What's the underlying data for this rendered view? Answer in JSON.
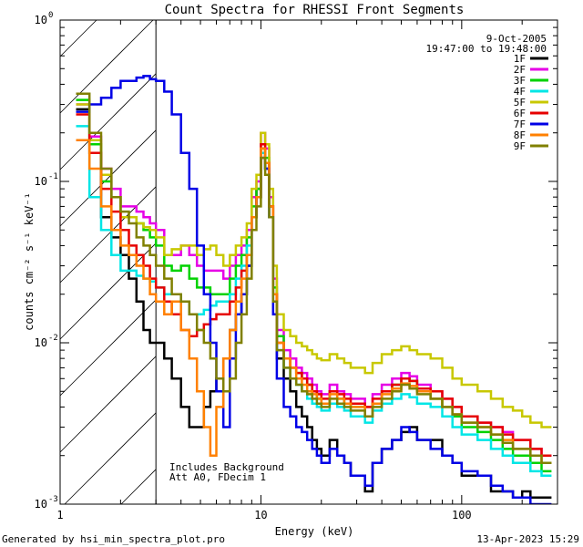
{
  "footer": {
    "generated_by": "Generated by hsi_min_spectra_plot.pro",
    "timestamp": "13-Apr-2023 15:29"
  },
  "chart_data": {
    "type": "line",
    "title": "Count Spectra for RHESSI Front Segments",
    "xlabel": "Energy (keV)",
    "ylabel": "counts cm⁻² s⁻¹ keV⁻¹",
    "x_scale": "log",
    "y_scale": "log",
    "xlim": [
      1,
      300
    ],
    "ylim": [
      0.001,
      1
    ],
    "x_ticks": [
      {
        "value": 1,
        "label": "1"
      },
      {
        "value": 10,
        "label": "10"
      },
      {
        "value": 100,
        "label": "100"
      }
    ],
    "y_ticks": [
      {
        "value": 1,
        "label": "10",
        "exp": "0"
      },
      {
        "value": 0.1,
        "label": "10",
        "exp": "-1"
      },
      {
        "value": 0.01,
        "label": "10",
        "exp": "-2"
      },
      {
        "value": 0.001,
        "label": "10",
        "exp": "-3"
      }
    ],
    "date": "9-Oct-2005",
    "time_range": "19:47:00 to 19:48:00",
    "annotations": [
      "Includes Background",
      "Att A0, FDecim 1"
    ],
    "hatched_region_max_energy": 3,
    "edges": [
      1.2,
      1.4,
      1.6,
      1.8,
      2.0,
      2.2,
      2.4,
      2.6,
      2.8,
      3.0,
      3.3,
      3.6,
      4.0,
      4.4,
      4.8,
      5.2,
      5.6,
      6.0,
      6.5,
      7.0,
      7.5,
      8.0,
      8.5,
      9.0,
      9.5,
      10.0,
      10.5,
      11.0,
      11.5,
      12.0,
      13.0,
      14.0,
      15.0,
      16.0,
      17.0,
      18.0,
      19.0,
      20.0,
      22.0,
      24.0,
      26.0,
      28.0,
      30.0,
      33.0,
      36.0,
      40.0,
      45.0,
      50.0,
      55.0,
      60.0,
      70.0,
      80.0,
      90.0,
      100.0,
      120.0,
      140.0,
      160.0,
      180.0,
      200.0,
      220.0,
      250.0,
      280.0
    ],
    "series": [
      {
        "name": "1F",
        "color": "#000000",
        "values": [
          0.28,
          0.15,
          0.06,
          0.045,
          0.035,
          0.025,
          0.018,
          0.012,
          0.01,
          0.01,
          0.008,
          0.006,
          0.004,
          0.003,
          0.003,
          0.004,
          0.005,
          0.006,
          0.008,
          0.012,
          0.015,
          0.02,
          0.03,
          0.06,
          0.09,
          0.15,
          0.12,
          0.07,
          0.02,
          0.008,
          0.006,
          0.005,
          0.004,
          0.0035,
          0.003,
          0.0025,
          0.0022,
          0.002,
          0.0025,
          0.002,
          0.0018,
          0.0015,
          0.0015,
          0.0012,
          0.0018,
          0.0022,
          0.0025,
          0.0028,
          0.003,
          0.0025,
          0.0025,
          0.002,
          0.0018,
          0.0015,
          0.0015,
          0.0012,
          0.0012,
          0.0011,
          0.0012,
          0.0011,
          0.0011
        ]
      },
      {
        "name": "2F",
        "color": "#e600e6",
        "values": [
          0.3,
          0.19,
          0.12,
          0.09,
          0.07,
          0.07,
          0.065,
          0.06,
          0.055,
          0.05,
          0.035,
          0.035,
          0.04,
          0.035,
          0.03,
          0.028,
          0.028,
          0.028,
          0.025,
          0.03,
          0.035,
          0.04,
          0.05,
          0.08,
          0.1,
          0.2,
          0.16,
          0.08,
          0.025,
          0.012,
          0.009,
          0.008,
          0.007,
          0.0065,
          0.006,
          0.0055,
          0.005,
          0.0048,
          0.0055,
          0.005,
          0.0048,
          0.0045,
          0.0045,
          0.004,
          0.0048,
          0.0055,
          0.006,
          0.0065,
          0.0062,
          0.0055,
          0.005,
          0.0045,
          0.004,
          0.0035,
          0.0032,
          0.003,
          0.0028,
          0.0025,
          0.0025,
          0.0022,
          0.002
        ]
      },
      {
        "name": "3F",
        "color": "#00d200",
        "values": [
          0.32,
          0.17,
          0.1,
          0.08,
          0.06,
          0.06,
          0.055,
          0.05,
          0.045,
          0.04,
          0.03,
          0.028,
          0.03,
          0.025,
          0.022,
          0.022,
          0.02,
          0.02,
          0.02,
          0.025,
          0.03,
          0.035,
          0.045,
          0.07,
          0.09,
          0.16,
          0.14,
          0.07,
          0.022,
          0.011,
          0.008,
          0.007,
          0.0065,
          0.006,
          0.0055,
          0.005,
          0.0045,
          0.0042,
          0.005,
          0.0045,
          0.0042,
          0.004,
          0.004,
          0.0035,
          0.0042,
          0.005,
          0.0055,
          0.006,
          0.0058,
          0.005,
          0.0045,
          0.004,
          0.0035,
          0.003,
          0.0028,
          0.0025,
          0.0022,
          0.002,
          0.002,
          0.0018,
          0.0016
        ]
      },
      {
        "name": "4F",
        "color": "#00e6e6",
        "values": [
          0.22,
          0.08,
          0.05,
          0.035,
          0.028,
          0.028,
          0.026,
          0.025,
          0.024,
          0.022,
          0.02,
          0.02,
          0.018,
          0.015,
          0.015,
          0.016,
          0.017,
          0.018,
          0.018,
          0.02,
          0.025,
          0.03,
          0.04,
          0.06,
          0.08,
          0.15,
          0.12,
          0.06,
          0.018,
          0.009,
          0.007,
          0.006,
          0.0055,
          0.005,
          0.0045,
          0.0042,
          0.004,
          0.0038,
          0.0042,
          0.004,
          0.0038,
          0.0035,
          0.0035,
          0.0032,
          0.0038,
          0.0042,
          0.0045,
          0.0048,
          0.0046,
          0.0042,
          0.004,
          0.0035,
          0.003,
          0.0027,
          0.0025,
          0.0022,
          0.002,
          0.0018,
          0.0018,
          0.0016,
          0.0015
        ]
      },
      {
        "name": "5F",
        "color": "#c8c800",
        "values": [
          0.3,
          0.18,
          0.11,
          0.08,
          0.06,
          0.06,
          0.055,
          0.052,
          0.05,
          0.045,
          0.035,
          0.038,
          0.04,
          0.04,
          0.035,
          0.038,
          0.04,
          0.035,
          0.03,
          0.035,
          0.04,
          0.045,
          0.055,
          0.09,
          0.11,
          0.2,
          0.17,
          0.09,
          0.03,
          0.015,
          0.012,
          0.011,
          0.01,
          0.0095,
          0.009,
          0.0085,
          0.008,
          0.0078,
          0.0085,
          0.008,
          0.0075,
          0.007,
          0.007,
          0.0065,
          0.0075,
          0.0085,
          0.009,
          0.0095,
          0.009,
          0.0085,
          0.008,
          0.007,
          0.006,
          0.0055,
          0.005,
          0.0045,
          0.004,
          0.0038,
          0.0035,
          0.0032,
          0.003
        ]
      },
      {
        "name": "6F",
        "color": "#e60000",
        "values": [
          0.26,
          0.15,
          0.09,
          0.065,
          0.05,
          0.04,
          0.035,
          0.03,
          0.025,
          0.022,
          0.018,
          0.015,
          0.012,
          0.011,
          0.012,
          0.013,
          0.014,
          0.015,
          0.015,
          0.018,
          0.022,
          0.028,
          0.035,
          0.06,
          0.08,
          0.17,
          0.13,
          0.07,
          0.02,
          0.01,
          0.008,
          0.007,
          0.0065,
          0.006,
          0.0055,
          0.005,
          0.0048,
          0.0045,
          0.005,
          0.0048,
          0.0045,
          0.0042,
          0.0042,
          0.004,
          0.0045,
          0.005,
          0.0055,
          0.006,
          0.0058,
          0.0052,
          0.005,
          0.0045,
          0.004,
          0.0035,
          0.0032,
          0.003,
          0.0027,
          0.0025,
          0.0025,
          0.0022,
          0.002
        ]
      },
      {
        "name": "7F",
        "color": "#0000e6",
        "values": [
          0.27,
          0.3,
          0.33,
          0.38,
          0.42,
          0.42,
          0.44,
          0.45,
          0.43,
          0.42,
          0.36,
          0.26,
          0.15,
          0.09,
          0.04,
          0.02,
          0.01,
          0.005,
          0.003,
          0.008,
          0.015,
          0.02,
          0.03,
          0.06,
          0.08,
          0.14,
          0.12,
          0.06,
          0.015,
          0.006,
          0.004,
          0.0035,
          0.003,
          0.0028,
          0.0025,
          0.0022,
          0.002,
          0.0018,
          0.0022,
          0.002,
          0.0018,
          0.0015,
          0.0015,
          0.0013,
          0.0018,
          0.0022,
          0.0025,
          0.003,
          0.0028,
          0.0025,
          0.0022,
          0.002,
          0.0018,
          0.0016,
          0.0015,
          0.0013,
          0.0012,
          0.0011,
          0.0011,
          0.001,
          0.001
        ]
      },
      {
        "name": "8F",
        "color": "#ff8000",
        "values": [
          0.18,
          0.12,
          0.07,
          0.05,
          0.04,
          0.035,
          0.03,
          0.025,
          0.02,
          0.018,
          0.015,
          0.018,
          0.012,
          0.008,
          0.005,
          0.003,
          0.002,
          0.004,
          0.008,
          0.012,
          0.018,
          0.025,
          0.035,
          0.06,
          0.08,
          0.16,
          0.13,
          0.07,
          0.02,
          0.01,
          0.008,
          0.007,
          0.006,
          0.0055,
          0.005,
          0.0048,
          0.0045,
          0.0042,
          0.0048,
          0.0045,
          0.0042,
          0.004,
          0.004,
          0.0035,
          0.0042,
          0.0048,
          0.0052,
          0.0056,
          0.0054,
          0.005,
          0.0045,
          0.004,
          0.0036,
          0.0032,
          0.003,
          0.0027,
          0.0025,
          0.0022,
          0.0022,
          0.002,
          0.0018
        ]
      },
      {
        "name": "9F",
        "color": "#808000",
        "values": [
          0.35,
          0.2,
          0.12,
          0.08,
          0.065,
          0.055,
          0.045,
          0.04,
          0.035,
          0.03,
          0.025,
          0.02,
          0.018,
          0.015,
          0.012,
          0.01,
          0.008,
          0.006,
          0.005,
          0.006,
          0.01,
          0.015,
          0.025,
          0.05,
          0.07,
          0.14,
          0.11,
          0.06,
          0.018,
          0.009,
          0.007,
          0.006,
          0.0055,
          0.005,
          0.0048,
          0.0045,
          0.0042,
          0.004,
          0.0045,
          0.0042,
          0.004,
          0.0038,
          0.0038,
          0.0035,
          0.004,
          0.0045,
          0.005,
          0.0055,
          0.0052,
          0.0048,
          0.0045,
          0.004,
          0.0036,
          0.0032,
          0.003,
          0.0027,
          0.0024,
          0.0022,
          0.0022,
          0.002,
          0.0018
        ]
      }
    ]
  }
}
